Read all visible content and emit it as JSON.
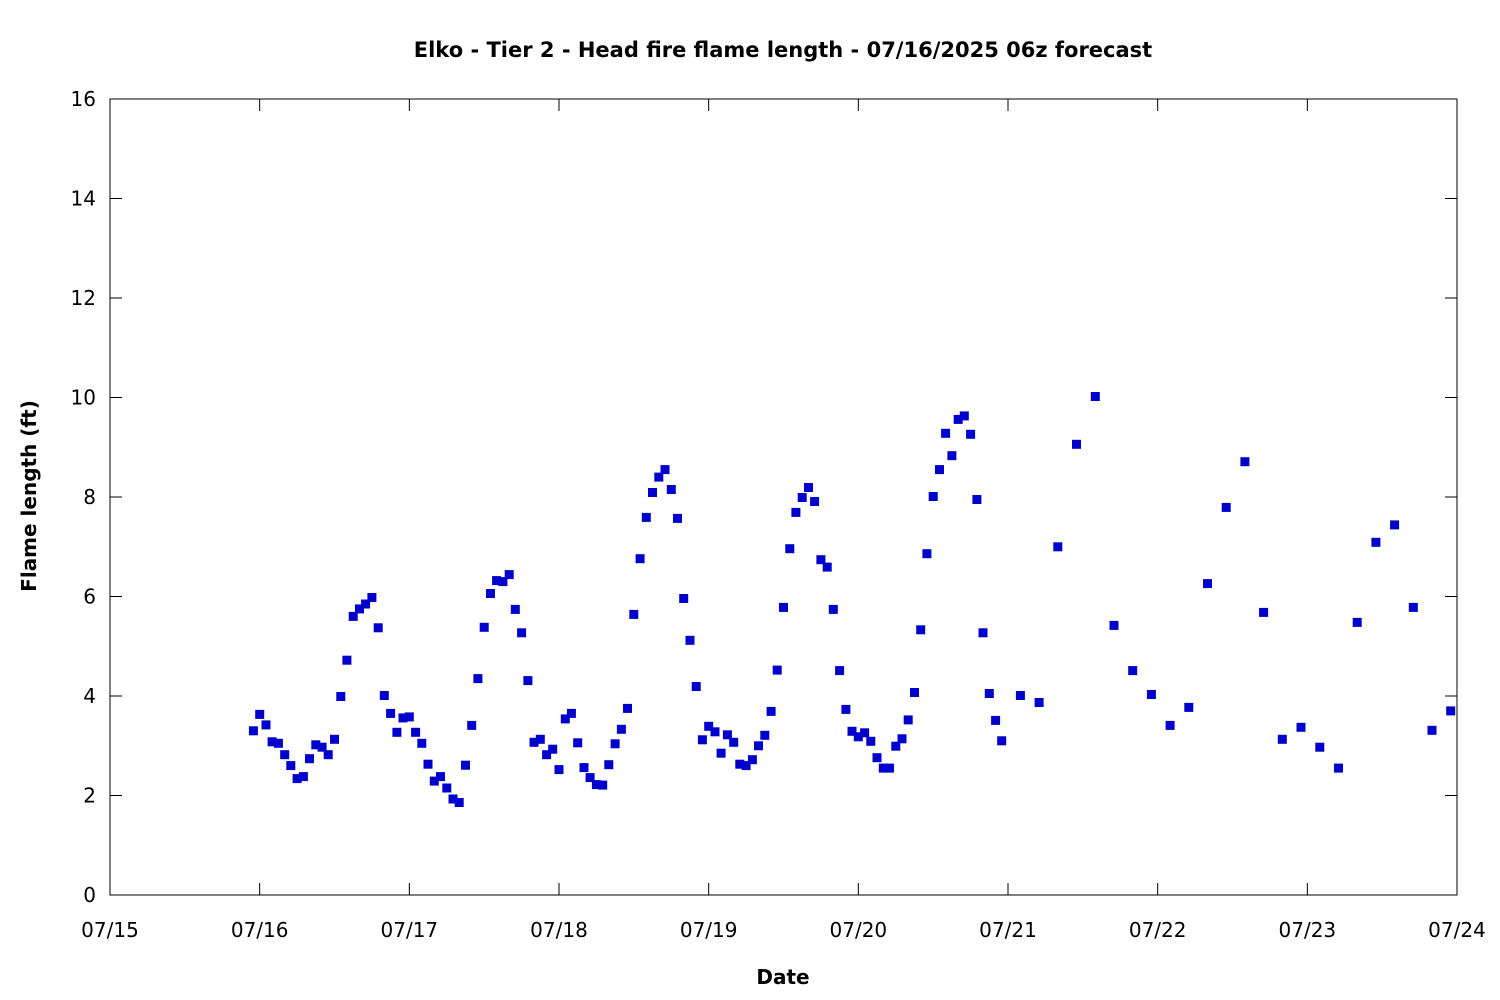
{
  "chart_data": {
    "type": "scatter",
    "title": "Elko - Tier 2 - Head fire flame length - 07/16/2025 06z forecast",
    "xlabel": "Date",
    "ylabel": "Flame length (ft)",
    "xlim": [
      "07/15",
      "07/24"
    ],
    "ylim": [
      0,
      16
    ],
    "x_ticks": [
      "07/15",
      "07/16",
      "07/17",
      "07/18",
      "07/19",
      "07/20",
      "07/21",
      "07/22",
      "07/23",
      "07/24"
    ],
    "y_ticks": [
      0,
      2,
      4,
      6,
      8,
      10,
      12,
      14,
      16
    ],
    "grid": false,
    "legend": "none",
    "marker_color": "#0000cc",
    "series": [
      {
        "x_unit": "days after 07/15 00z",
        "points": [
          [
            0.958,
            3.3
          ],
          [
            1.0,
            3.63
          ],
          [
            1.042,
            3.42
          ],
          [
            1.083,
            3.08
          ],
          [
            1.125,
            3.05
          ],
          [
            1.167,
            2.82
          ],
          [
            1.208,
            2.6
          ],
          [
            1.25,
            2.34
          ],
          [
            1.292,
            2.38
          ],
          [
            1.333,
            2.74
          ],
          [
            1.375,
            3.02
          ],
          [
            1.417,
            2.97
          ],
          [
            1.458,
            2.82
          ],
          [
            1.5,
            3.13
          ],
          [
            1.542,
            3.99
          ],
          [
            1.583,
            4.72
          ],
          [
            1.625,
            5.6
          ],
          [
            1.667,
            5.75
          ],
          [
            1.708,
            5.85
          ],
          [
            1.75,
            5.98
          ],
          [
            1.792,
            5.37
          ],
          [
            1.833,
            4.01
          ],
          [
            1.875,
            3.65
          ],
          [
            1.917,
            3.27
          ],
          [
            1.958,
            3.56
          ],
          [
            2.0,
            3.58
          ],
          [
            2.042,
            3.27
          ],
          [
            2.083,
            3.05
          ],
          [
            2.125,
            2.63
          ],
          [
            2.167,
            2.29
          ],
          [
            2.208,
            2.38
          ],
          [
            2.25,
            2.15
          ],
          [
            2.292,
            1.93
          ],
          [
            2.333,
            1.86
          ],
          [
            2.375,
            2.61
          ],
          [
            2.417,
            3.41
          ],
          [
            2.458,
            4.35
          ],
          [
            2.5,
            5.38
          ],
          [
            2.542,
            6.06
          ],
          [
            2.583,
            6.32
          ],
          [
            2.625,
            6.3
          ],
          [
            2.667,
            6.44
          ],
          [
            2.708,
            5.74
          ],
          [
            2.75,
            5.27
          ],
          [
            2.792,
            4.31
          ],
          [
            2.833,
            3.07
          ],
          [
            2.875,
            3.13
          ],
          [
            2.917,
            2.82
          ],
          [
            2.958,
            2.93
          ],
          [
            3.0,
            2.52
          ],
          [
            3.042,
            3.54
          ],
          [
            3.083,
            3.65
          ],
          [
            3.125,
            3.06
          ],
          [
            3.167,
            2.56
          ],
          [
            3.208,
            2.36
          ],
          [
            3.25,
            2.22
          ],
          [
            3.292,
            2.21
          ],
          [
            3.333,
            2.62
          ],
          [
            3.375,
            3.04
          ],
          [
            3.417,
            3.33
          ],
          [
            3.458,
            3.75
          ],
          [
            3.5,
            5.64
          ],
          [
            3.542,
            6.76
          ],
          [
            3.583,
            7.59
          ],
          [
            3.625,
            8.09
          ],
          [
            3.667,
            8.4
          ],
          [
            3.708,
            8.55
          ],
          [
            3.75,
            8.15
          ],
          [
            3.792,
            7.57
          ],
          [
            3.833,
            5.96
          ],
          [
            3.875,
            5.12
          ],
          [
            3.917,
            4.19
          ],
          [
            3.958,
            3.12
          ],
          [
            4.0,
            3.39
          ],
          [
            4.042,
            3.28
          ],
          [
            4.083,
            2.85
          ],
          [
            4.125,
            3.22
          ],
          [
            4.167,
            3.07
          ],
          [
            4.208,
            2.63
          ],
          [
            4.25,
            2.6
          ],
          [
            4.292,
            2.72
          ],
          [
            4.333,
            3.0
          ],
          [
            4.375,
            3.21
          ],
          [
            4.417,
            3.69
          ],
          [
            4.458,
            4.52
          ],
          [
            4.5,
            5.78
          ],
          [
            4.542,
            6.96
          ],
          [
            4.583,
            7.69
          ],
          [
            4.625,
            7.99
          ],
          [
            4.667,
            8.19
          ],
          [
            4.708,
            7.91
          ],
          [
            4.75,
            6.74
          ],
          [
            4.792,
            6.59
          ],
          [
            4.833,
            5.74
          ],
          [
            4.875,
            4.51
          ],
          [
            4.917,
            3.73
          ],
          [
            4.958,
            3.29
          ],
          [
            5.0,
            3.18
          ],
          [
            5.042,
            3.26
          ],
          [
            5.083,
            3.09
          ],
          [
            5.125,
            2.76
          ],
          [
            5.167,
            2.55
          ],
          [
            5.208,
            2.55
          ],
          [
            5.25,
            2.99
          ],
          [
            5.292,
            3.14
          ],
          [
            5.333,
            3.52
          ],
          [
            5.375,
            4.07
          ],
          [
            5.417,
            5.33
          ],
          [
            5.458,
            6.86
          ],
          [
            5.5,
            8.01
          ],
          [
            5.542,
            8.55
          ],
          [
            5.583,
            9.28
          ],
          [
            5.625,
            8.83
          ],
          [
            5.667,
            9.56
          ],
          [
            5.708,
            9.63
          ],
          [
            5.75,
            9.26
          ],
          [
            5.792,
            7.95
          ],
          [
            5.833,
            5.27
          ],
          [
            5.875,
            4.05
          ],
          [
            5.917,
            3.51
          ],
          [
            5.958,
            3.1
          ],
          [
            6.083,
            4.01
          ],
          [
            6.208,
            3.87
          ],
          [
            6.333,
            7.0
          ],
          [
            6.458,
            9.06
          ],
          [
            6.583,
            10.02
          ],
          [
            6.708,
            5.42
          ],
          [
            6.833,
            4.51
          ],
          [
            6.958,
            4.03
          ],
          [
            7.083,
            3.41
          ],
          [
            7.208,
            3.77
          ],
          [
            7.333,
            6.26
          ],
          [
            7.458,
            7.79
          ],
          [
            7.583,
            8.71
          ],
          [
            7.708,
            5.68
          ],
          [
            7.833,
            3.13
          ],
          [
            7.958,
            3.37
          ],
          [
            8.083,
            2.97
          ],
          [
            8.208,
            2.55
          ],
          [
            8.333,
            5.48
          ],
          [
            8.458,
            7.09
          ],
          [
            8.583,
            7.44
          ],
          [
            8.708,
            5.78
          ],
          [
            8.833,
            3.31
          ],
          [
            8.958,
            3.7
          ]
        ]
      }
    ]
  }
}
